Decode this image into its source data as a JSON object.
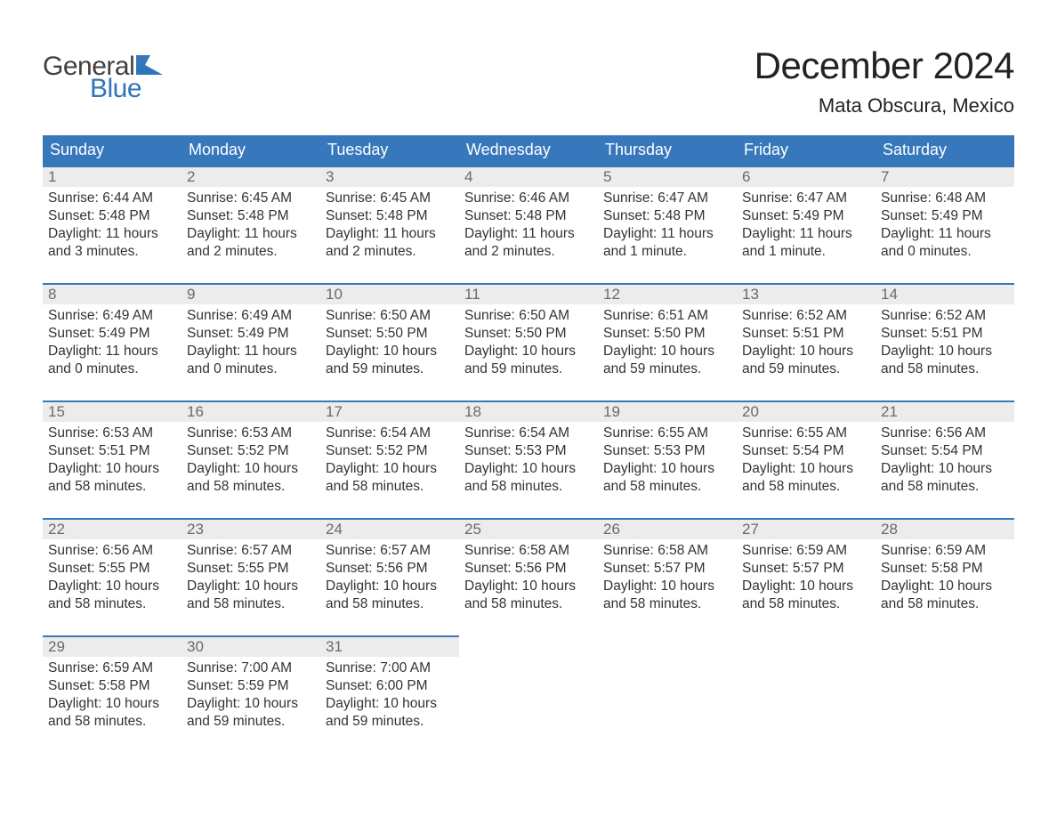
{
  "colors": {
    "header_bg": "#3778bc",
    "header_text": "#ffffff",
    "daynum_bg": "#ececec",
    "daynum_text": "#6a6a6a",
    "body_text": "#333333",
    "logo_gray": "#404040",
    "logo_blue": "#2d76b9",
    "row_border": "#3778bc",
    "page_bg": "#ffffff"
  },
  "typography": {
    "font_family": "Segoe UI, Arial, Helvetica, sans-serif",
    "title_fontsize": 42,
    "location_fontsize": 22,
    "th_fontsize": 18,
    "daynum_fontsize": 17,
    "body_fontsize": 15.5,
    "logo_fontsize": 30
  },
  "logo": {
    "line1": "General",
    "line2": "Blue"
  },
  "title": {
    "month": "December 2024",
    "location": "Mata Obscura, Mexico"
  },
  "weekdays": [
    "Sunday",
    "Monday",
    "Tuesday",
    "Wednesday",
    "Thursday",
    "Friday",
    "Saturday"
  ],
  "labels": {
    "sunrise": "Sunrise:",
    "sunset": "Sunset:",
    "daylight": "Daylight:"
  },
  "days": [
    {
      "n": "1",
      "sunrise": "6:44 AM",
      "sunset": "5:48 PM",
      "dl_h": "11",
      "dl_m": "3",
      "mword": "minutes"
    },
    {
      "n": "2",
      "sunrise": "6:45 AM",
      "sunset": "5:48 PM",
      "dl_h": "11",
      "dl_m": "2",
      "mword": "minutes"
    },
    {
      "n": "3",
      "sunrise": "6:45 AM",
      "sunset": "5:48 PM",
      "dl_h": "11",
      "dl_m": "2",
      "mword": "minutes"
    },
    {
      "n": "4",
      "sunrise": "6:46 AM",
      "sunset": "5:48 PM",
      "dl_h": "11",
      "dl_m": "2",
      "mword": "minutes"
    },
    {
      "n": "5",
      "sunrise": "6:47 AM",
      "sunset": "5:48 PM",
      "dl_h": "11",
      "dl_m": "1",
      "mword": "minute"
    },
    {
      "n": "6",
      "sunrise": "6:47 AM",
      "sunset": "5:49 PM",
      "dl_h": "11",
      "dl_m": "1",
      "mword": "minute"
    },
    {
      "n": "7",
      "sunrise": "6:48 AM",
      "sunset": "5:49 PM",
      "dl_h": "11",
      "dl_m": "0",
      "mword": "minutes"
    },
    {
      "n": "8",
      "sunrise": "6:49 AM",
      "sunset": "5:49 PM",
      "dl_h": "11",
      "dl_m": "0",
      "mword": "minutes"
    },
    {
      "n": "9",
      "sunrise": "6:49 AM",
      "sunset": "5:49 PM",
      "dl_h": "11",
      "dl_m": "0",
      "mword": "minutes"
    },
    {
      "n": "10",
      "sunrise": "6:50 AM",
      "sunset": "5:50 PM",
      "dl_h": "10",
      "dl_m": "59",
      "mword": "minutes"
    },
    {
      "n": "11",
      "sunrise": "6:50 AM",
      "sunset": "5:50 PM",
      "dl_h": "10",
      "dl_m": "59",
      "mword": "minutes"
    },
    {
      "n": "12",
      "sunrise": "6:51 AM",
      "sunset": "5:50 PM",
      "dl_h": "10",
      "dl_m": "59",
      "mword": "minutes"
    },
    {
      "n": "13",
      "sunrise": "6:52 AM",
      "sunset": "5:51 PM",
      "dl_h": "10",
      "dl_m": "59",
      "mword": "minutes"
    },
    {
      "n": "14",
      "sunrise": "6:52 AM",
      "sunset": "5:51 PM",
      "dl_h": "10",
      "dl_m": "58",
      "mword": "minutes"
    },
    {
      "n": "15",
      "sunrise": "6:53 AM",
      "sunset": "5:51 PM",
      "dl_h": "10",
      "dl_m": "58",
      "mword": "minutes"
    },
    {
      "n": "16",
      "sunrise": "6:53 AM",
      "sunset": "5:52 PM",
      "dl_h": "10",
      "dl_m": "58",
      "mword": "minutes"
    },
    {
      "n": "17",
      "sunrise": "6:54 AM",
      "sunset": "5:52 PM",
      "dl_h": "10",
      "dl_m": "58",
      "mword": "minutes"
    },
    {
      "n": "18",
      "sunrise": "6:54 AM",
      "sunset": "5:53 PM",
      "dl_h": "10",
      "dl_m": "58",
      "mword": "minutes"
    },
    {
      "n": "19",
      "sunrise": "6:55 AM",
      "sunset": "5:53 PM",
      "dl_h": "10",
      "dl_m": "58",
      "mword": "minutes"
    },
    {
      "n": "20",
      "sunrise": "6:55 AM",
      "sunset": "5:54 PM",
      "dl_h": "10",
      "dl_m": "58",
      "mword": "minutes"
    },
    {
      "n": "21",
      "sunrise": "6:56 AM",
      "sunset": "5:54 PM",
      "dl_h": "10",
      "dl_m": "58",
      "mword": "minutes"
    },
    {
      "n": "22",
      "sunrise": "6:56 AM",
      "sunset": "5:55 PM",
      "dl_h": "10",
      "dl_m": "58",
      "mword": "minutes"
    },
    {
      "n": "23",
      "sunrise": "6:57 AM",
      "sunset": "5:55 PM",
      "dl_h": "10",
      "dl_m": "58",
      "mword": "minutes"
    },
    {
      "n": "24",
      "sunrise": "6:57 AM",
      "sunset": "5:56 PM",
      "dl_h": "10",
      "dl_m": "58",
      "mword": "minutes"
    },
    {
      "n": "25",
      "sunrise": "6:58 AM",
      "sunset": "5:56 PM",
      "dl_h": "10",
      "dl_m": "58",
      "mword": "minutes"
    },
    {
      "n": "26",
      "sunrise": "6:58 AM",
      "sunset": "5:57 PM",
      "dl_h": "10",
      "dl_m": "58",
      "mword": "minutes"
    },
    {
      "n": "27",
      "sunrise": "6:59 AM",
      "sunset": "5:57 PM",
      "dl_h": "10",
      "dl_m": "58",
      "mword": "minutes"
    },
    {
      "n": "28",
      "sunrise": "6:59 AM",
      "sunset": "5:58 PM",
      "dl_h": "10",
      "dl_m": "58",
      "mword": "minutes"
    },
    {
      "n": "29",
      "sunrise": "6:59 AM",
      "sunset": "5:58 PM",
      "dl_h": "10",
      "dl_m": "58",
      "mword": "minutes"
    },
    {
      "n": "30",
      "sunrise": "7:00 AM",
      "sunset": "5:59 PM",
      "dl_h": "10",
      "dl_m": "59",
      "mword": "minutes"
    },
    {
      "n": "31",
      "sunrise": "7:00 AM",
      "sunset": "6:00 PM",
      "dl_h": "10",
      "dl_m": "59",
      "mword": "minutes"
    }
  ],
  "calendar_grid": {
    "rows": 5,
    "cols": 7,
    "start_offset": 0,
    "total_days": 31
  }
}
